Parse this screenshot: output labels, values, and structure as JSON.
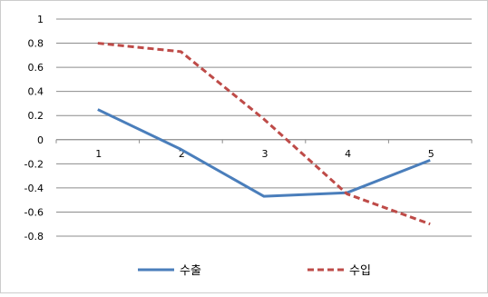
{
  "chart_data": {
    "type": "line",
    "categories": [
      "1",
      "2",
      "3",
      "4",
      "5"
    ],
    "series": [
      {
        "name": "수출",
        "values": [
          0.25,
          -0.08,
          -0.47,
          -0.44,
          -0.17
        ],
        "color": "#4a7ebb",
        "style": "solid"
      },
      {
        "name": "수입",
        "values": [
          0.8,
          0.73,
          0.17,
          -0.45,
          -0.7
        ],
        "color": "#be4b48",
        "style": "dashed"
      }
    ],
    "ylim": [
      -0.8,
      1
    ],
    "yticks": [
      "1",
      "0.8",
      "0.6",
      "0.4",
      "0.2",
      "0",
      "-0.2",
      "-0.4",
      "-0.6",
      "-0.8"
    ],
    "ytick_values": [
      1,
      0.8,
      0.6,
      0.4,
      0.2,
      0,
      -0.2,
      -0.4,
      -0.6,
      -0.8
    ],
    "grid": true,
    "legend": "bottom",
    "title": "",
    "xlabel": "",
    "ylabel": ""
  }
}
